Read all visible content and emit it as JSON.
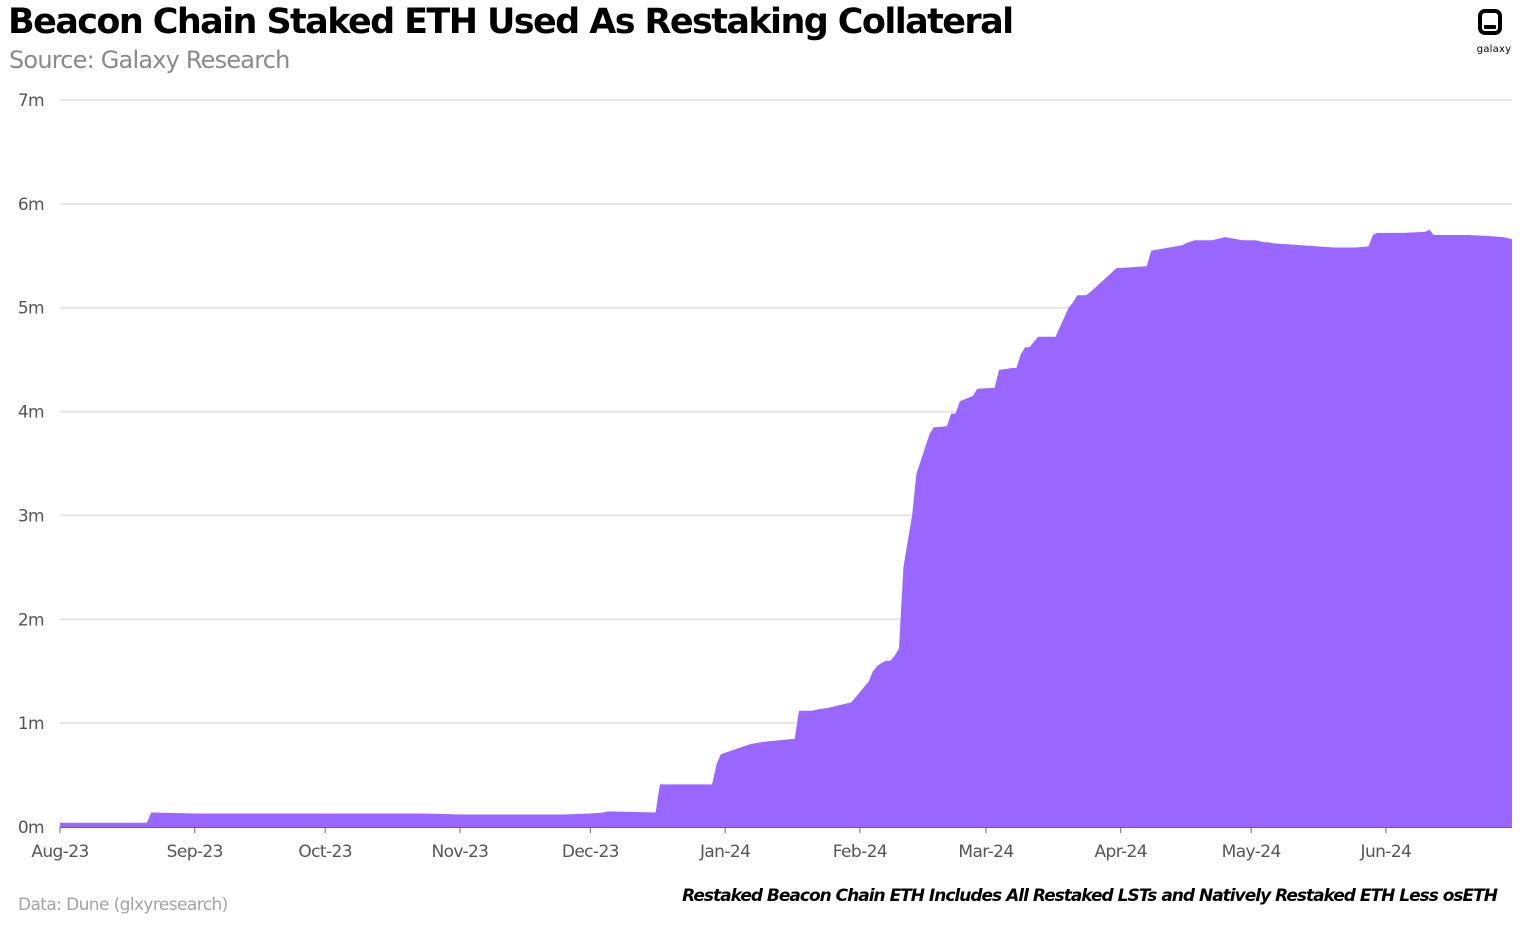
{
  "header": {
    "title": "Beacon Chain Staked ETH Used As Restaking Collateral",
    "subtitle": "Source: Galaxy Research"
  },
  "logo": {
    "text": "galaxy",
    "icon": "galaxy-logo-icon"
  },
  "footer": {
    "source": "Data: Dune (glxyresearch)",
    "note": "Restaked Beacon Chain ETH Includes All Restaked LSTs and Natively Restaked ETH Less osETH"
  },
  "colors": {
    "area": "#9966ff",
    "grid": "#e6e6e6",
    "axis": "#555555"
  },
  "chart_data": {
    "type": "area",
    "title": "Beacon Chain Staked ETH Used As Restaking Collateral",
    "xlabel": "",
    "ylabel": "",
    "y_unit": "m",
    "ylim": [
      0,
      7
    ],
    "yticks": [
      0,
      1,
      2,
      3,
      4,
      5,
      6,
      7
    ],
    "ytick_labels": [
      "0m",
      "1m",
      "2m",
      "3m",
      "4m",
      "5m",
      "6m",
      "7m"
    ],
    "xlim": [
      "2023-08-01",
      "2024-06-30"
    ],
    "xticks": [
      "2023-08-01",
      "2023-09-01",
      "2023-10-01",
      "2023-11-01",
      "2023-12-01",
      "2024-01-01",
      "2024-02-01",
      "2024-03-01",
      "2024-04-01",
      "2024-05-01",
      "2024-06-01"
    ],
    "xtick_labels": [
      "Aug-23",
      "Sep-23",
      "Oct-23",
      "Nov-23",
      "Dec-23",
      "Jan-24",
      "Feb-24",
      "Mar-24",
      "Apr-24",
      "May-24",
      "Jun-24"
    ],
    "grid": true,
    "legend": "none",
    "x": [
      "2023-08-01",
      "2023-08-21",
      "2023-08-22",
      "2023-09-01",
      "2023-10-01",
      "2023-10-24",
      "2023-11-01",
      "2023-11-25",
      "2023-12-01",
      "2023-12-04",
      "2023-12-05",
      "2023-12-16",
      "2023-12-17",
      "2023-12-18",
      "2023-12-20",
      "2023-12-22",
      "2023-12-25",
      "2023-12-29",
      "2023-12-30",
      "2023-12-31",
      "2024-01-07",
      "2024-01-10",
      "2024-01-17",
      "2024-01-18",
      "2024-01-21",
      "2024-01-22",
      "2024-01-25",
      "2024-01-26",
      "2024-01-30",
      "2024-01-31",
      "2024-02-03",
      "2024-02-04",
      "2024-02-05",
      "2024-02-06",
      "2024-02-07",
      "2024-02-08",
      "2024-02-09",
      "2024-02-10",
      "2024-02-11",
      "2024-02-13",
      "2024-02-14",
      "2024-02-17",
      "2024-02-18",
      "2024-02-19",
      "2024-02-21",
      "2024-02-22",
      "2024-02-23",
      "2024-02-24",
      "2024-02-27",
      "2024-02-28",
      "2024-03-03",
      "2024-03-04",
      "2024-03-07",
      "2024-03-08",
      "2024-03-09",
      "2024-03-10",
      "2024-03-11",
      "2024-03-13",
      "2024-03-15",
      "2024-03-17",
      "2024-03-20",
      "2024-03-21",
      "2024-03-22",
      "2024-03-24",
      "2024-03-25",
      "2024-03-31",
      "2024-04-07",
      "2024-04-08",
      "2024-04-15",
      "2024-04-16",
      "2024-04-18",
      "2024-04-22",
      "2024-04-25",
      "2024-04-29",
      "2024-05-02",
      "2024-05-04",
      "2024-05-05",
      "2024-05-06",
      "2024-05-13",
      "2024-05-20",
      "2024-05-25",
      "2024-05-28",
      "2024-05-29",
      "2024-05-30",
      "2024-06-02",
      "2024-06-05",
      "2024-06-10",
      "2024-06-11",
      "2024-06-12",
      "2024-06-15",
      "2024-06-20",
      "2024-06-25",
      "2024-06-28",
      "2024-06-30"
    ],
    "values": [
      0.04,
      0.04,
      0.14,
      0.13,
      0.13,
      0.13,
      0.12,
      0.12,
      0.13,
      0.14,
      0.15,
      0.14,
      0.41,
      0.41,
      0.41,
      0.41,
      0.41,
      0.41,
      0.6,
      0.7,
      0.8,
      0.82,
      0.85,
      1.12,
      1.12,
      1.13,
      1.15,
      1.16,
      1.2,
      1.25,
      1.4,
      1.5,
      1.55,
      1.58,
      1.6,
      1.6,
      1.65,
      1.72,
      2.5,
      3.0,
      3.4,
      3.78,
      3.85,
      3.85,
      3.86,
      3.98,
      3.98,
      4.1,
      4.15,
      4.22,
      4.23,
      4.4,
      4.42,
      4.42,
      4.55,
      4.62,
      4.62,
      4.72,
      4.72,
      4.72,
      5.0,
      5.05,
      5.12,
      5.12,
      5.15,
      5.38,
      5.4,
      5.55,
      5.6,
      5.62,
      5.65,
      5.65,
      5.68,
      5.65,
      5.65,
      5.63,
      5.63,
      5.62,
      5.6,
      5.58,
      5.58,
      5.59,
      5.7,
      5.72,
      5.72,
      5.72,
      5.73,
      5.75,
      5.7,
      5.7,
      5.7,
      5.69,
      5.68,
      5.66
    ]
  }
}
